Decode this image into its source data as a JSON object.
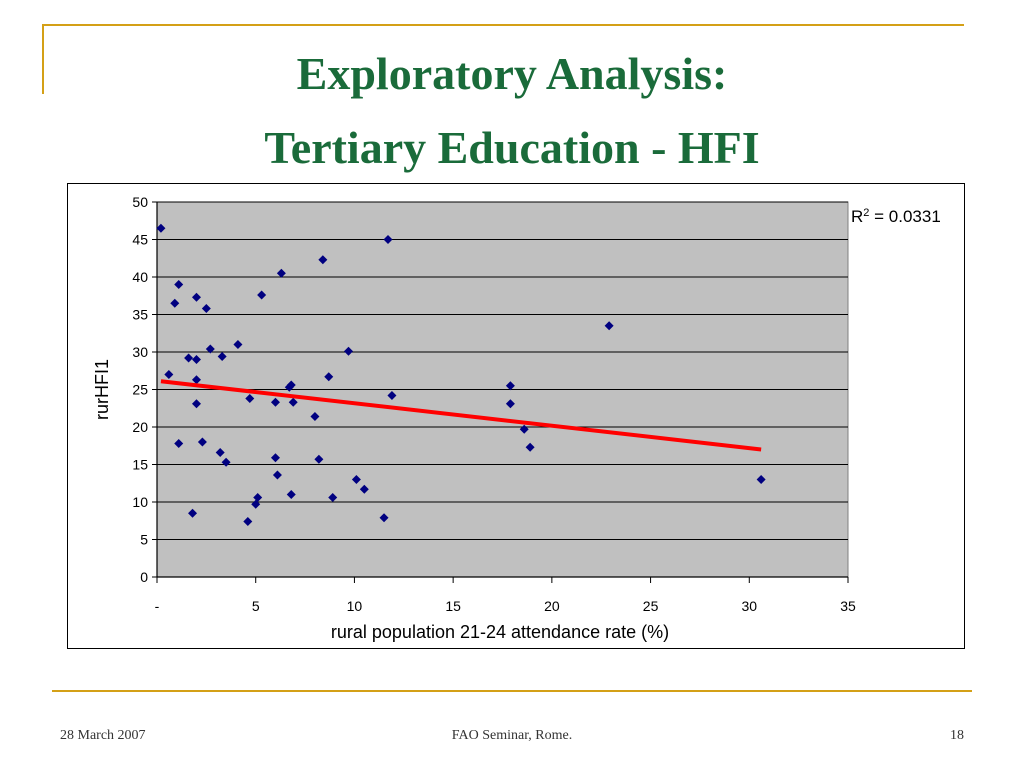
{
  "slide": {
    "title_line1": "Exploratory Analysis:",
    "title_line2": "Tertiary Education - HFI",
    "footer_date": "28 March 2007",
    "footer_event": "FAO Seminar, Rome.",
    "page_number": "18",
    "accent_color": "#d4a017",
    "title_color": "#1a6b3a"
  },
  "chart_data": {
    "type": "scatter",
    "xlabel": "rural population 21-24 attendance rate (%)",
    "ylabel": "rurHFI1",
    "xlim": [
      0,
      35
    ],
    "ylim": [
      0,
      50
    ],
    "x_ticks": [
      0,
      5,
      10,
      15,
      20,
      25,
      30,
      35
    ],
    "x_tick_labels": [
      "-",
      "5",
      "10",
      "15",
      "20",
      "25",
      "30",
      "35"
    ],
    "y_ticks": [
      0,
      5,
      10,
      15,
      20,
      25,
      30,
      35,
      40,
      45,
      50
    ],
    "y_tick_labels": [
      "0",
      "5",
      "10",
      "15",
      "20",
      "25",
      "30",
      "35",
      "40",
      "45",
      "50"
    ],
    "grid": true,
    "plot_background": "#c0c0c0",
    "marker_color": "#000080",
    "trendline_color": "#ff0000",
    "annotation": {
      "r2_prefix": "R",
      "r2_sup": "2",
      "r2_value": " = 0.0331"
    },
    "trendline": {
      "x": [
        0.2,
        30.6
      ],
      "y": [
        26.1,
        17.0
      ]
    },
    "points": [
      {
        "x": 0.2,
        "y": 46.5
      },
      {
        "x": 0.6,
        "y": 27.0
      },
      {
        "x": 0.9,
        "y": 36.5
      },
      {
        "x": 1.1,
        "y": 39.0
      },
      {
        "x": 1.1,
        "y": 17.8
      },
      {
        "x": 1.6,
        "y": 29.2
      },
      {
        "x": 1.8,
        "y": 8.5
      },
      {
        "x": 2.0,
        "y": 29.0
      },
      {
        "x": 2.0,
        "y": 37.3
      },
      {
        "x": 2.0,
        "y": 26.3
      },
      {
        "x": 2.0,
        "y": 23.1
      },
      {
        "x": 2.3,
        "y": 18.0
      },
      {
        "x": 2.5,
        "y": 35.8
      },
      {
        "x": 2.7,
        "y": 30.4
      },
      {
        "x": 3.2,
        "y": 16.6
      },
      {
        "x": 3.3,
        "y": 29.4
      },
      {
        "x": 3.5,
        "y": 15.3
      },
      {
        "x": 4.1,
        "y": 31.0
      },
      {
        "x": 4.6,
        "y": 7.4
      },
      {
        "x": 4.7,
        "y": 23.8
      },
      {
        "x": 5.0,
        "y": 9.7
      },
      {
        "x": 5.1,
        "y": 10.6
      },
      {
        "x": 5.3,
        "y": 37.6
      },
      {
        "x": 6.0,
        "y": 23.3
      },
      {
        "x": 6.0,
        "y": 15.9
      },
      {
        "x": 6.1,
        "y": 13.6
      },
      {
        "x": 6.3,
        "y": 40.5
      },
      {
        "x": 6.7,
        "y": 25.3
      },
      {
        "x": 6.8,
        "y": 25.6
      },
      {
        "x": 6.8,
        "y": 11.0
      },
      {
        "x": 6.9,
        "y": 23.3
      },
      {
        "x": 8.0,
        "y": 21.4
      },
      {
        "x": 8.2,
        "y": 15.7
      },
      {
        "x": 8.4,
        "y": 42.3
      },
      {
        "x": 8.7,
        "y": 26.7
      },
      {
        "x": 8.9,
        "y": 10.6
      },
      {
        "x": 9.7,
        "y": 30.1
      },
      {
        "x": 10.1,
        "y": 13.0
      },
      {
        "x": 10.5,
        "y": 11.7
      },
      {
        "x": 11.5,
        "y": 7.9
      },
      {
        "x": 11.7,
        "y": 45.0
      },
      {
        "x": 11.9,
        "y": 24.2
      },
      {
        "x": 17.9,
        "y": 25.5
      },
      {
        "x": 17.9,
        "y": 23.1
      },
      {
        "x": 18.6,
        "y": 19.7
      },
      {
        "x": 18.9,
        "y": 17.3
      },
      {
        "x": 22.9,
        "y": 33.5
      },
      {
        "x": 30.6,
        "y": 13.0
      }
    ]
  }
}
